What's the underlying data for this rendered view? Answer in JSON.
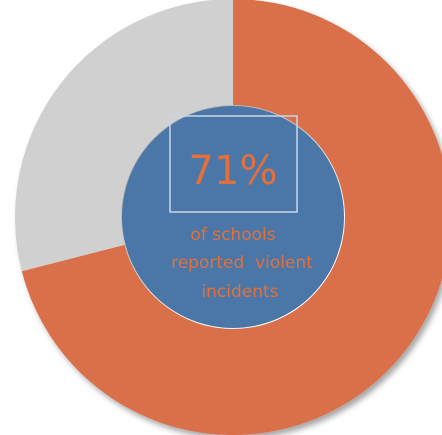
{
  "chart_data": {
    "type": "pie",
    "style": "donut",
    "slices": [
      {
        "value": 71,
        "color": "#D9704A"
      },
      {
        "value": 29,
        "color": "#D0D0D0"
      }
    ],
    "center": {
      "value_label": "71%",
      "caption_lines": [
        "of schools",
        "reported  violent",
        "incidents"
      ],
      "fill_color": "#4A77A8",
      "text_color": "#E2703A"
    }
  }
}
